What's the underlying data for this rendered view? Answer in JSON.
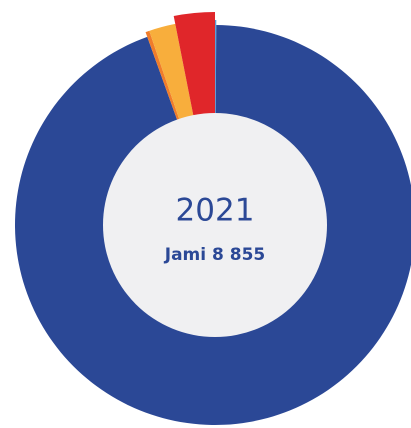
{
  "chart_data": {
    "type": "donut",
    "title": "2021",
    "subtitle": "Jami 8 855",
    "values": [
      9,
      8359,
      27,
      185,
      275
    ],
    "colors": [
      "#5aa0d8",
      "#2b4896",
      "#f07c2a",
      "#f8ae3c",
      "#e0262a"
    ]
  }
}
